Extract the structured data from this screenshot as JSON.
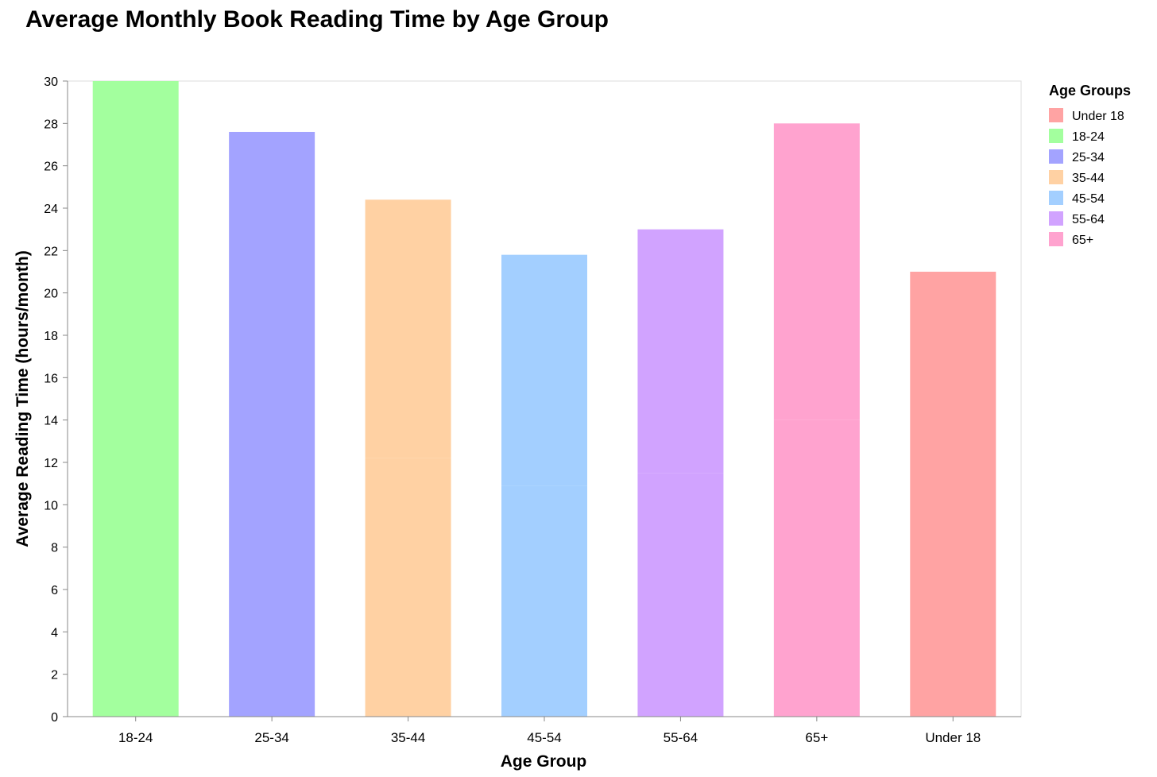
{
  "chart_data": {
    "type": "bar",
    "title": "Average Monthly Book Reading Time by Age Group",
    "xlabel": "Age Group",
    "ylabel": "Average Reading Time (hours/month)",
    "ylim": [
      0,
      30
    ],
    "yticks": [
      0,
      2,
      4,
      6,
      8,
      10,
      12,
      14,
      16,
      18,
      20,
      22,
      24,
      26,
      28,
      30
    ],
    "grid": false,
    "legend": {
      "title": "Age Groups",
      "placement": "right",
      "entries": [
        "Under 18",
        "18-24",
        "25-34",
        "35-44",
        "45-54",
        "55-64",
        "65+"
      ]
    },
    "categories": [
      "18-24",
      "25-34",
      "35-44",
      "45-54",
      "55-64",
      "65+",
      "Under 18"
    ],
    "values": [
      30,
      27.6,
      24.4,
      21.8,
      23,
      28,
      21
    ],
    "segments": [
      [
        {
          "color_key": "18-24",
          "value": 30
        }
      ],
      [
        {
          "color_key": "25-34",
          "value": 27.6
        }
      ],
      [
        {
          "color_key": "35-44",
          "value": 12.2
        },
        {
          "color_key": "35-44",
          "value": 12.2
        }
      ],
      [
        {
          "color_key": "45-54",
          "value": 10.9
        },
        {
          "color_key": "45-54",
          "value": 10.9
        }
      ],
      [
        {
          "color_key": "55-64",
          "value": 11.5
        },
        {
          "color_key": "55-64",
          "value": 11.5
        }
      ],
      [
        {
          "color_key": "65+",
          "value": 14
        },
        {
          "color_key": "65+",
          "value": 14
        }
      ],
      [
        {
          "color_key": "Under 18",
          "value": 21
        }
      ]
    ],
    "colors": {
      "Under 18": "#ffa3a3",
      "18-24": "#a3ff9e",
      "25-34": "#a3a3ff",
      "35-44": "#ffd1a3",
      "45-54": "#a3cfff",
      "55-64": "#d1a3ff",
      "65+": "#ffa3cf"
    }
  }
}
